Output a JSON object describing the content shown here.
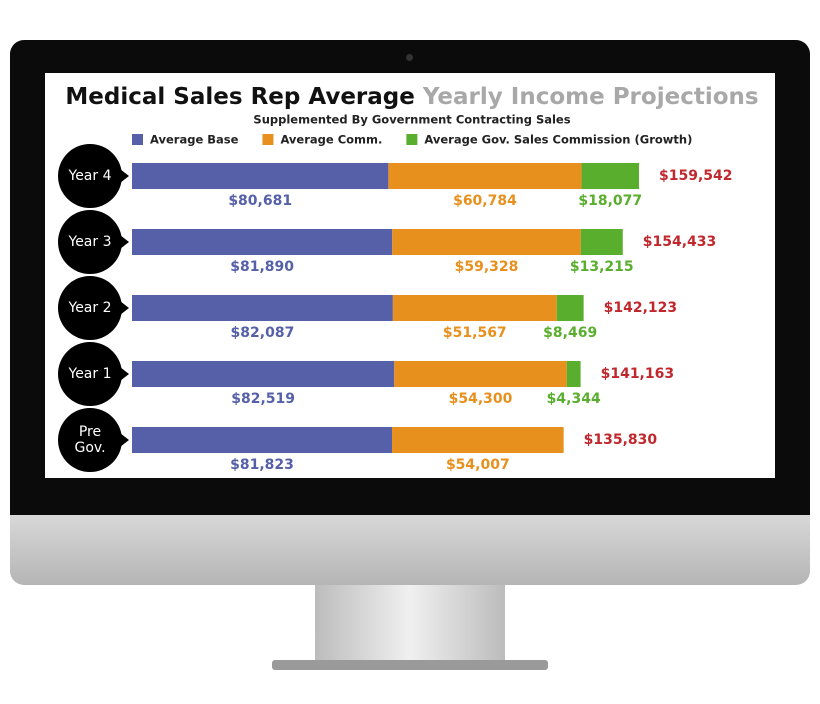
{
  "chart_data": {
    "type": "stacked-bar-horizontal",
    "title": "Medical Sales Rep Average",
    "title_continued": "Yearly Income Projections",
    "subtitle": "Supplemented By Government Contracting Sales",
    "categories": [
      "Year 4",
      "Year 3",
      "Year 2",
      "Year 1",
      "Pre Gov."
    ],
    "series": [
      {
        "name": "Average Base",
        "color": "#5560a8",
        "values": [
          80681,
          81890,
          82087,
          82519,
          81823
        ],
        "value_labels": [
          "$80,681",
          "$81,890",
          "$82,087",
          "$82,519",
          "$81,823"
        ]
      },
      {
        "name": "Average Comm.",
        "color": "#e8901e",
        "values": [
          60784,
          59328,
          51567,
          54300,
          54007
        ],
        "value_labels": [
          "$60,784",
          "$59,328",
          "$51,567",
          "$54,300",
          "$54,007"
        ]
      },
      {
        "name": "Average Gov. Sales Commission (Growth)",
        "color": "#5aae2e",
        "values": [
          18077,
          13215,
          8469,
          4344,
          null
        ],
        "value_labels": [
          "$18,077",
          "$13,215",
          "$8,469",
          "$4,344",
          null
        ]
      }
    ],
    "totals": {
      "color": "#c0282d",
      "values": [
        159542,
        154433,
        142123,
        141163,
        135830
      ],
      "value_labels": [
        "$159,542",
        "$154,433",
        "$142,123",
        "$141,163",
        "$135,830"
      ]
    }
  }
}
